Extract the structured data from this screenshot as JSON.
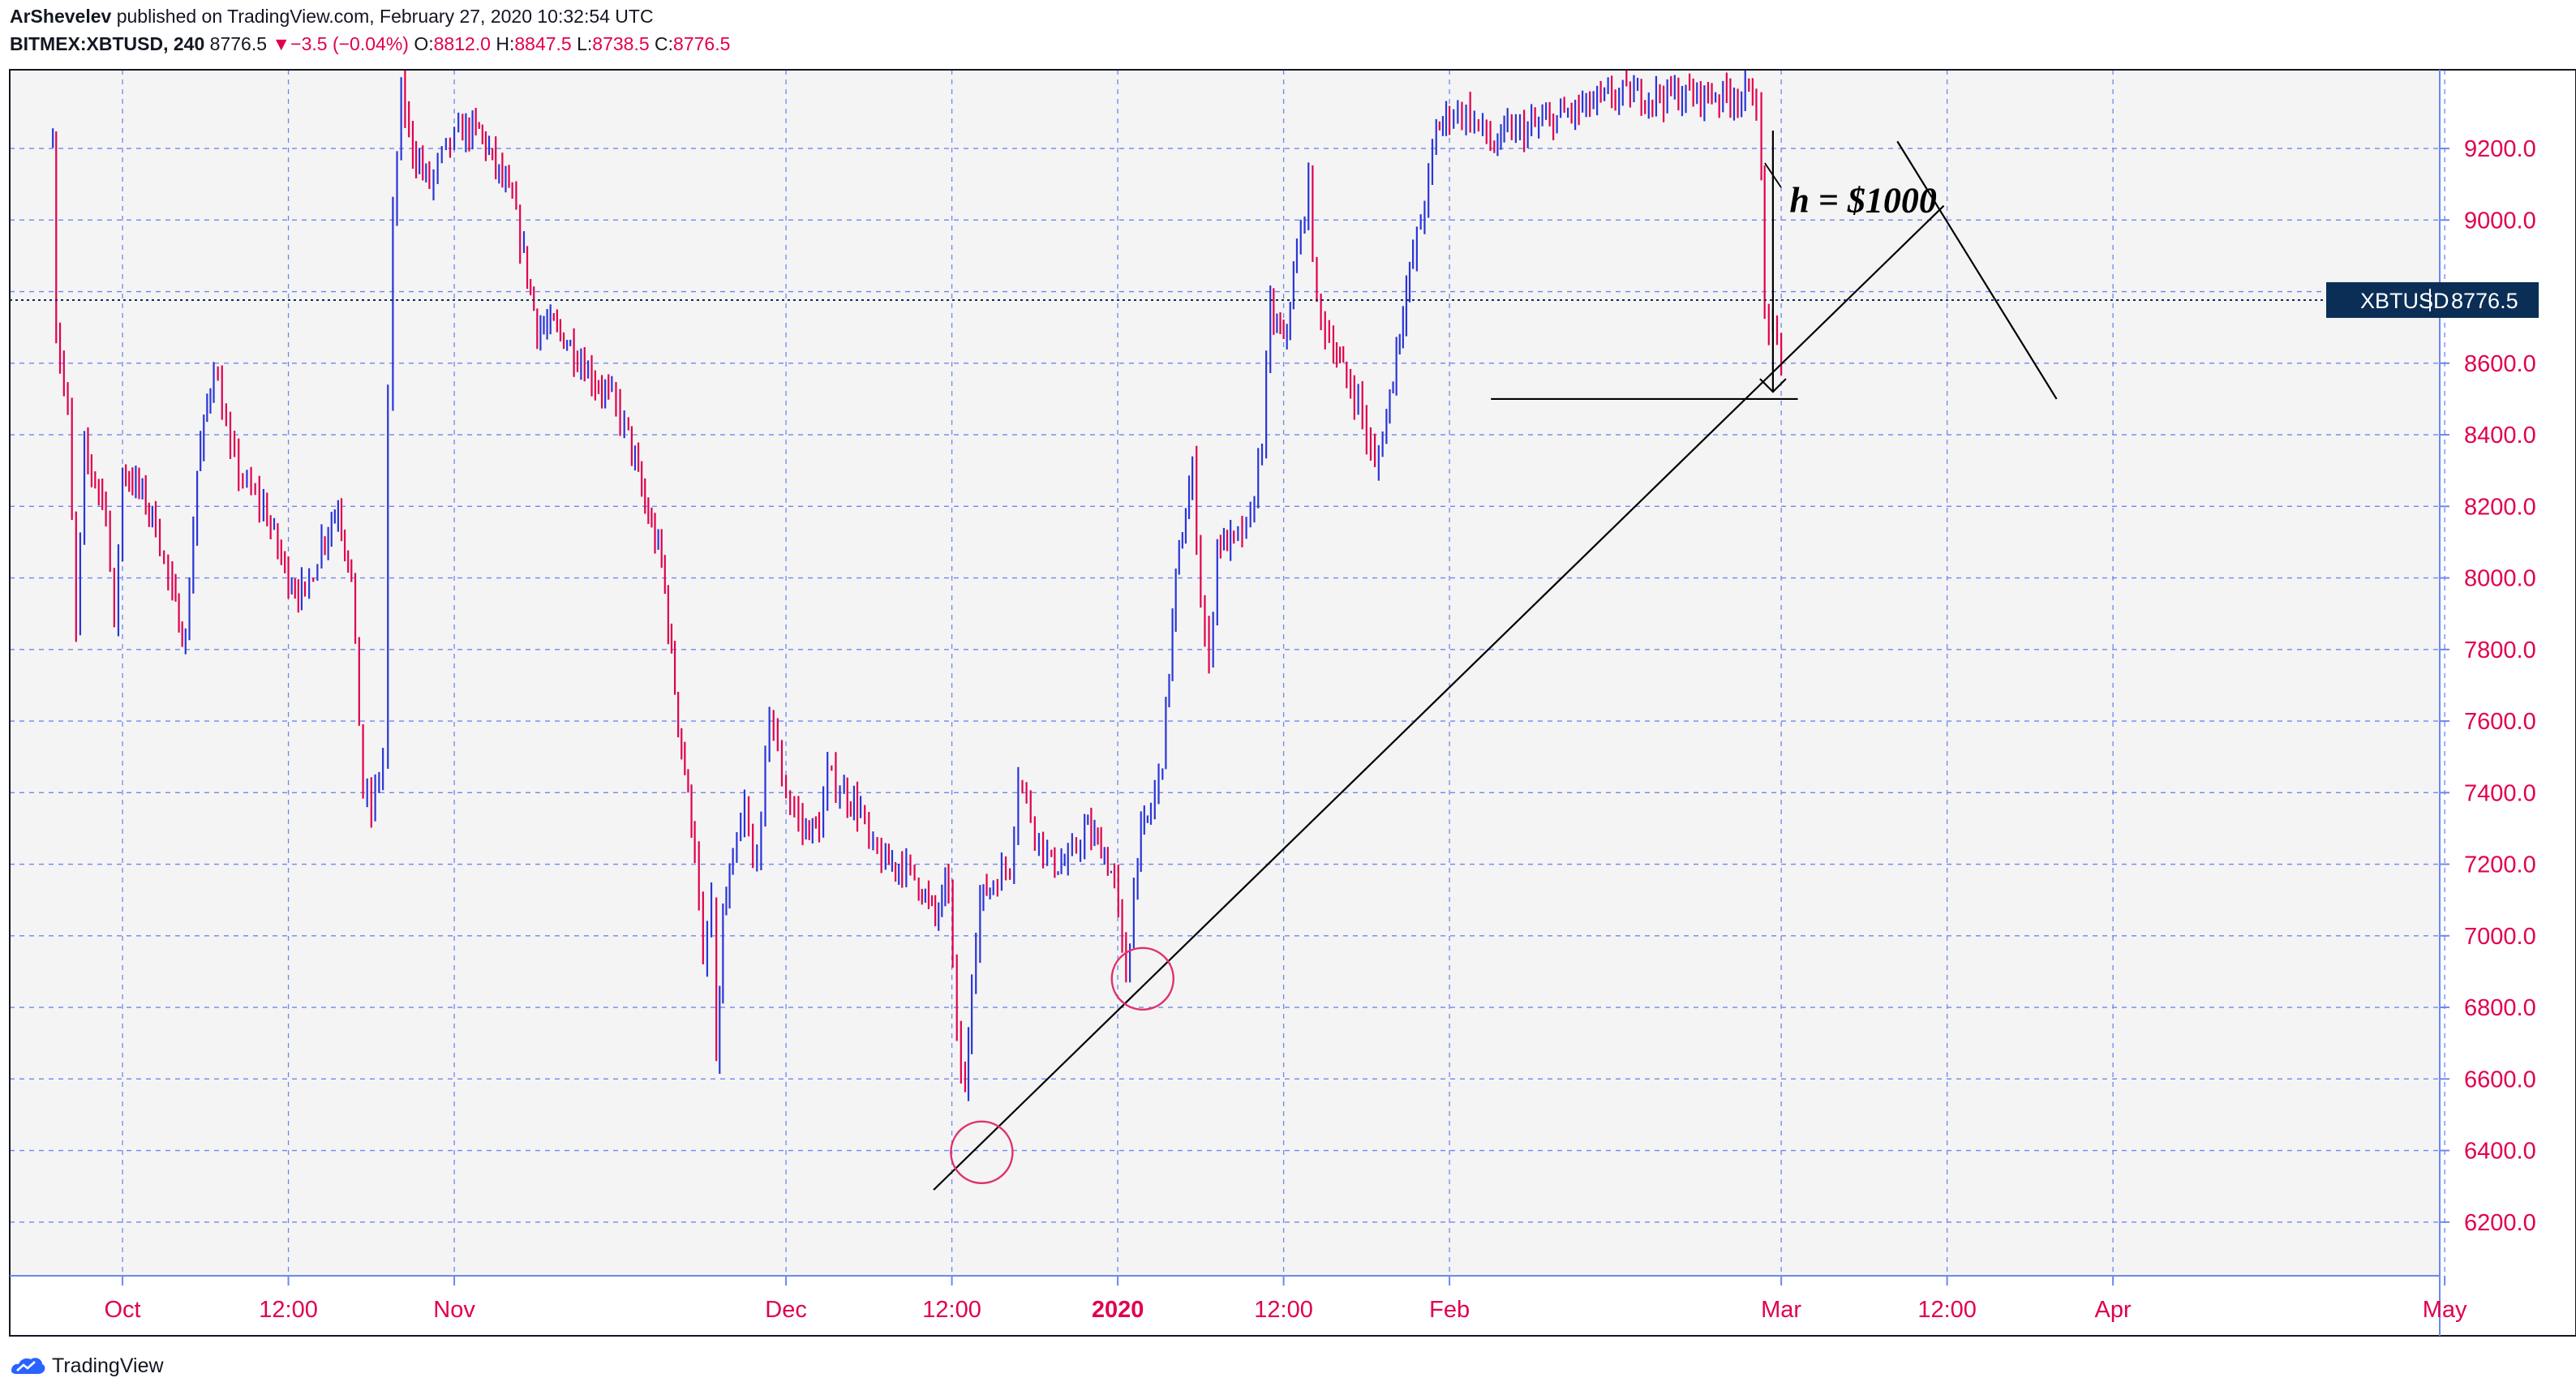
{
  "header": {
    "author": "ArShevelev",
    "published_text": "published on TradingView.com, February 27, 2020 10:32:54 UTC",
    "symbol": "BITMEX:XBTUSD, 240",
    "last_price": "8776.5",
    "change_arrow": "▼",
    "change": "−3.5 (−0.04%)",
    "o_label": "O:",
    "o_value": "8812.0",
    "h_label": "H:",
    "h_value": "8847.5",
    "l_label": "L:",
    "l_value": "8738.5",
    "c_label": "C:",
    "c_value": "8776.5"
  },
  "price_label": {
    "symbol": "XBTUSD",
    "value": "8776.5",
    "price": 8776.5
  },
  "annotation_text": "h = $1000",
  "footer": {
    "brand": "TradingView"
  },
  "colors": {
    "up": "#2a35d8",
    "down": "#e0004d",
    "axis_text": "#e0004d",
    "grid": "#6f86f0",
    "drawing": "#000000",
    "circle": "#e0306c",
    "price_label_bg": "#0b2e56",
    "plot_bg": "#f4f4f4"
  },
  "chart_data": {
    "type": "candlestick",
    "symbol": "XBTUSD",
    "interval": "240",
    "ylim": [
      6050,
      9420
    ],
    "y_ticks": [
      9200,
      9000,
      8800,
      8600,
      8400,
      8200,
      8000,
      7800,
      7600,
      7400,
      7200,
      7000,
      6800,
      6600,
      6400,
      6200
    ],
    "y_tick_labels": [
      "9200.0",
      "9000.0",
      "8800.0",
      "8600.0",
      "8400.0",
      "8200.0",
      "8000.0",
      "7800.0",
      "7600.0",
      "7400.0",
      "7200.0",
      "7000.0",
      "6800.0",
      "6600.0",
      "6400.0",
      "6200.0"
    ],
    "x_ticks": [
      {
        "label": "Oct",
        "t": 0
      },
      {
        "label": "12:00",
        "t": 1
      },
      {
        "label": "Nov",
        "t": 2
      },
      {
        "label": "Dec",
        "t": 4
      },
      {
        "label": "12:00",
        "t": 5
      },
      {
        "label": "2020",
        "t": 6,
        "bold": true
      },
      {
        "label": "12:00",
        "t": 7
      },
      {
        "label": "Feb",
        "t": 8
      },
      {
        "label": "Mar",
        "t": 10
      },
      {
        "label": "12:00",
        "t": 11
      },
      {
        "label": "Apr",
        "t": 12
      },
      {
        "label": "May",
        "t": 14
      }
    ],
    "x_range": [
      -0.68,
      13.97
    ],
    "price_path": [
      [
        -0.42,
        9250
      ],
      [
        -0.4,
        8700
      ],
      [
        -0.33,
        8450
      ],
      [
        -0.28,
        7850
      ],
      [
        -0.23,
        8350
      ],
      [
        -0.1,
        8200
      ],
      [
        -0.05,
        7850
      ],
      [
        0.0,
        8300
      ],
      [
        0.1,
        8250
      ],
      [
        0.2,
        8150
      ],
      [
        0.3,
        7950
      ],
      [
        0.38,
        7820
      ],
      [
        0.45,
        8300
      ],
      [
        0.55,
        8600
      ],
      [
        0.65,
        8350
      ],
      [
        0.75,
        8250
      ],
      [
        0.85,
        8200
      ],
      [
        1.0,
        8000
      ],
      [
        1.1,
        7950
      ],
      [
        1.2,
        8100
      ],
      [
        1.3,
        8200
      ],
      [
        1.38,
        8000
      ],
      [
        1.45,
        7400
      ],
      [
        1.5,
        7350
      ],
      [
        1.57,
        7500
      ],
      [
        1.6,
        8500
      ],
      [
        1.63,
        9000
      ],
      [
        1.68,
        9350
      ],
      [
        1.75,
        9200
      ],
      [
        1.85,
        9100
      ],
      [
        1.95,
        9200
      ],
      [
        2.05,
        9250
      ],
      [
        2.15,
        9250
      ],
      [
        2.25,
        9150
      ],
      [
        2.35,
        9050
      ],
      [
        2.42,
        8900
      ],
      [
        2.5,
        8700
      ],
      [
        2.6,
        8700
      ],
      [
        2.7,
        8650
      ],
      [
        2.85,
        8550
      ],
      [
        2.95,
        8500
      ],
      [
        3.05,
        8400
      ],
      [
        3.15,
        8200
      ],
      [
        3.25,
        8050
      ],
      [
        3.35,
        7600
      ],
      [
        3.45,
        7250
      ],
      [
        3.5,
        6900
      ],
      [
        3.55,
        7100
      ],
      [
        3.58,
        6620
      ],
      [
        3.62,
        7050
      ],
      [
        3.68,
        7200
      ],
      [
        3.75,
        7350
      ],
      [
        3.8,
        7200
      ],
      [
        3.85,
        7300
      ],
      [
        3.9,
        7650
      ],
      [
        3.95,
        7500
      ],
      [
        4.0,
        7400
      ],
      [
        4.1,
        7300
      ],
      [
        4.2,
        7300
      ],
      [
        4.25,
        7450
      ],
      [
        4.35,
        7400
      ],
      [
        4.45,
        7350
      ],
      [
        4.5,
        7250
      ],
      [
        4.6,
        7200
      ],
      [
        4.7,
        7200
      ],
      [
        4.8,
        7150
      ],
      [
        4.9,
        7050
      ],
      [
        4.98,
        7150
      ],
      [
        5.03,
        6700
      ],
      [
        5.08,
        6550
      ],
      [
        5.12,
        6900
      ],
      [
        5.17,
        7100
      ],
      [
        5.25,
        7150
      ],
      [
        5.35,
        7200
      ],
      [
        5.4,
        7450
      ],
      [
        5.5,
        7300
      ],
      [
        5.6,
        7200
      ],
      [
        5.7,
        7200
      ],
      [
        5.8,
        7300
      ],
      [
        5.9,
        7250
      ],
      [
        5.98,
        7150
      ],
      [
        6.05,
        6880
      ],
      [
        6.12,
        7250
      ],
      [
        6.2,
        7350
      ],
      [
        6.27,
        7500
      ],
      [
        6.35,
        8000
      ],
      [
        6.45,
        8300
      ],
      [
        6.5,
        7950
      ],
      [
        6.55,
        7750
      ],
      [
        6.6,
        8100
      ],
      [
        6.7,
        8100
      ],
      [
        6.8,
        8150
      ],
      [
        6.87,
        8400
      ],
      [
        6.92,
        8750
      ],
      [
        7.0,
        8650
      ],
      [
        7.08,
        8900
      ],
      [
        7.15,
        9100
      ],
      [
        7.2,
        8750
      ],
      [
        7.3,
        8650
      ],
      [
        7.38,
        8550
      ],
      [
        7.45,
        8500
      ],
      [
        7.5,
        8400
      ],
      [
        7.55,
        8300
      ],
      [
        7.62,
        8450
      ],
      [
        7.7,
        8700
      ],
      [
        7.78,
        8900
      ],
      [
        7.85,
        9050
      ],
      [
        7.92,
        9250
      ],
      [
        8.0,
        9300
      ],
      [
        8.1,
        9300
      ],
      [
        8.2,
        9250
      ],
      [
        8.27,
        9200
      ],
      [
        8.35,
        9250
      ],
      [
        8.45,
        9250
      ],
      [
        9.0,
        9350
      ],
      [
        9.85,
        9350
      ],
      [
        9.88,
        9100
      ],
      [
        9.9,
        8750
      ],
      [
        9.95,
        8680
      ],
      [
        10.0,
        8600
      ],
      [
        10.03,
        8776.5
      ]
    ],
    "trendline": [
      [
        4.89,
        6290
      ],
      [
        10.98,
        9040
      ]
    ],
    "support_line": [
      [
        8.25,
        8500
      ],
      [
        10.1,
        8500
      ]
    ],
    "diagonal_line": [
      [
        10.7,
        9220
      ],
      [
        11.66,
        8500
      ]
    ],
    "measure_arrow": {
      "x": 9.95,
      "from": 9250,
      "to": 8520
    },
    "circles": [
      [
        5.18,
        6395
      ],
      [
        6.15,
        6880
      ]
    ],
    "annotation": {
      "text": "h = $1000",
      "x": 10.05,
      "y": 9050
    },
    "last_price": 8776.5
  }
}
